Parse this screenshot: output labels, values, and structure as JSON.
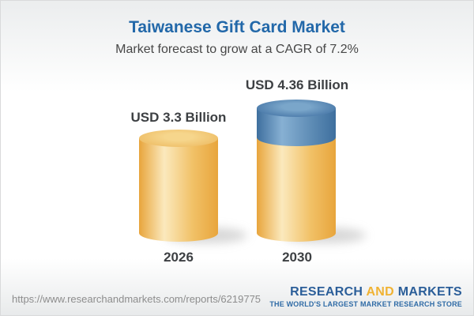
{
  "chart_data": {
    "type": "bar",
    "variant": "3d-cylinder",
    "title": "Taiwanese Gift Card Market",
    "subtitle": "Market forecast to grow at a CAGR of 7.2%",
    "unit": "USD Billion",
    "categories": [
      "2026",
      "2030"
    ],
    "values": [
      3.3,
      4.36
    ],
    "value_labels": [
      "USD 3.3 Billion",
      "USD 4.36 Billion"
    ],
    "cagr_percent": 7.2,
    "legend": "none",
    "grid": "off",
    "colors": {
      "base_segment": "#edb04b",
      "growth_segment": "#4b7dab",
      "title_text": "#2268a9",
      "label_text": "#3d4043"
    }
  },
  "footer": {
    "url": "https://www.researchandmarkets.com/reports/6219775",
    "logo": {
      "part1": "RESEARCH",
      "part2": "AND",
      "part3": "MARKETS",
      "tagline": "THE WORLD'S LARGEST MARKET RESEARCH STORE",
      "brand_blue": "#2b5e99",
      "brand_gold": "#f0b232"
    }
  }
}
